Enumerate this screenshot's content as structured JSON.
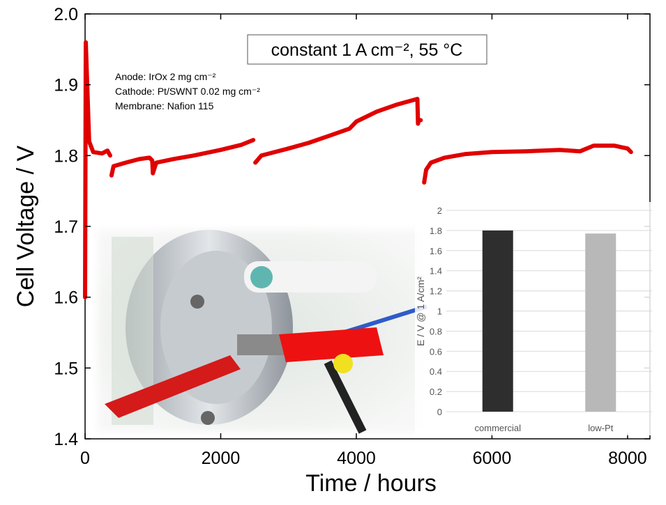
{
  "chart_data": [
    {
      "type": "line",
      "x_label": "Time / hours",
      "y_label": "Cell Voltage / V",
      "annotations": [
        "constant 1 A cm⁻², 55 °C",
        "Anode: IrOx 2 mg cm⁻²",
        "Cathode: Pt/SWNT 0.02 mg cm⁻²",
        "Membrane: Nafion 115"
      ],
      "x": [
        0,
        10,
        60,
        120,
        250,
        330,
        370,
        380,
        390,
        420,
        600,
        800,
        950,
        990,
        1000,
        1050,
        1300,
        1600,
        2000,
        2300,
        2480,
        2500,
        2510,
        2600,
        3000,
        3300,
        3600,
        3900,
        4000,
        4300,
        4600,
        4900,
        4910,
        4920,
        4950,
        4990,
        5000,
        5030,
        5100,
        5300,
        5600,
        6000,
        6500,
        7000,
        7300,
        7500,
        7800,
        8000,
        8050
      ],
      "values": [
        1.6,
        1.96,
        1.82,
        1.805,
        1.803,
        1.807,
        1.8,
        null,
        1.772,
        1.785,
        1.79,
        1.795,
        1.797,
        1.793,
        1.775,
        1.79,
        1.795,
        1.8,
        1.808,
        1.815,
        1.822,
        null,
        1.79,
        1.8,
        1.81,
        1.818,
        1.828,
        1.838,
        1.848,
        1.862,
        1.872,
        1.88,
        1.845,
        1.85,
        1.85,
        null,
        1.762,
        1.78,
        1.79,
        1.797,
        1.802,
        1.805,
        1.806,
        1.808,
        1.806,
        1.814,
        1.814,
        1.81,
        1.805
      ],
      "color": "#e00000",
      "xlim": [
        0,
        8330
      ],
      "xticks": [
        0,
        2000,
        4000,
        6000,
        8000
      ],
      "ylim": [
        1.4,
        2.0
      ],
      "yticks": [
        1.4,
        1.5,
        1.6,
        1.7,
        1.8,
        1.9,
        {
          "value": 2,
          "label": "2.0"
        }
      ]
    },
    {
      "type": "bar",
      "y_label": "E / V @ 1 A/cm²",
      "categories": [
        "commercial",
        "low-Pt"
      ],
      "values": [
        1.8,
        1.77
      ],
      "colors": [
        "#2e2e2e",
        "#b8b8b8"
      ],
      "ylim": [
        0,
        2
      ],
      "yticks": [
        0,
        0.2,
        0.4,
        0.6,
        0.8,
        1,
        1.2,
        1.4,
        1.6,
        1.8,
        2
      ],
      "grid": true
    }
  ]
}
